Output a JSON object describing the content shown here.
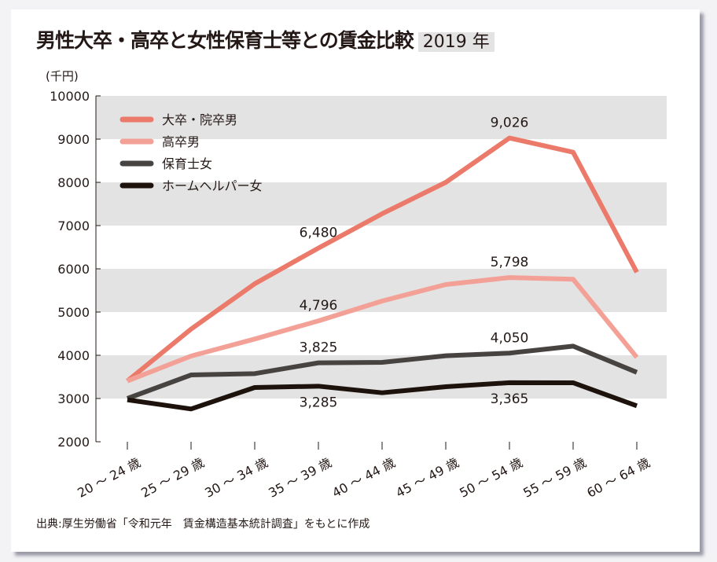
{
  "title": "男性大卒・高卒と女性保育士等との賃金比較",
  "year_badge": "2019 年",
  "source": "出典:厚生労働省「令和元年　賃金構造基本統計調査」をもとに作成",
  "chart_data": {
    "type": "line",
    "title": "男性大卒・高卒と女性保育士等との賃金比較",
    "ylabel": "(千円)",
    "ylim": [
      2000,
      10000
    ],
    "yticks": [
      2000,
      3000,
      4000,
      5000,
      6000,
      7000,
      8000,
      9000,
      10000
    ],
    "grid": "alternating horizontal bands",
    "legend": "top-left",
    "categories": [
      "20 ～ 24 歳",
      "25 ～ 29 歳",
      "30 ～ 34 歳",
      "35 ～ 39 歳",
      "40 ～ 44 歳",
      "45 ～ 49 歳",
      "50 ～ 54 歳",
      "55 ～ 59 歳",
      "60 ～ 64 歳"
    ],
    "series": [
      {
        "name": "大卒・院卒男",
        "color": "#ec7a6a",
        "values": [
          3406,
          4606,
          5654,
          6480,
          7273,
          8000,
          9026,
          8697,
          5921
        ],
        "labels": {
          "3": "6,480",
          "6": "9,026"
        }
      },
      {
        "name": "高卒男",
        "color": "#f3a196",
        "values": [
          3406,
          3982,
          4376,
          4796,
          5255,
          5636,
          5798,
          5758,
          3952
        ],
        "labels": {
          "3": "4,796",
          "6": "5,798"
        }
      },
      {
        "name": "保育士女",
        "color": "#474341",
        "values": [
          3000,
          3545,
          3576,
          3825,
          3836,
          3988,
          4050,
          4212,
          3606
        ],
        "labels": {
          "3": "3,825",
          "6": "4,050"
        }
      },
      {
        "name": "ホームヘルパー女",
        "color": "#1e130c",
        "values": [
          2970,
          2758,
          3255,
          3285,
          3133,
          3273,
          3365,
          3364,
          2830
        ],
        "labels": {
          "3": "3,285",
          "6": "3,365"
        }
      }
    ]
  }
}
